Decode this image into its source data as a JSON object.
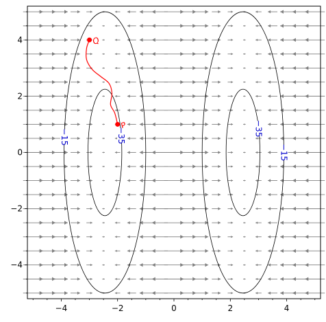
{
  "chart_data": {
    "type": "scatter",
    "title": "",
    "xlabel": "",
    "ylabel": "",
    "xlim": [
      -5.2,
      5.2
    ],
    "ylim": [
      -5.2,
      5.2
    ],
    "x_ticks": [
      -4,
      -2,
      0,
      2,
      4
    ],
    "y_ticks": [
      -4,
      -2,
      0,
      2,
      4
    ],
    "x_tick_labels": [
      "−4",
      "−2",
      "0",
      "2",
      "4"
    ],
    "y_tick_labels": [
      "−4",
      "−2",
      "0",
      "2",
      "4"
    ],
    "minor_tick_step": 0.5,
    "grid": false,
    "vector_field": {
      "description": "horizontal arrows pointing toward x = -2.5 and x = 2.5 region centers",
      "grid_x": [
        -5.0,
        -4.5,
        -4.0,
        -3.5,
        -3.0,
        -2.5,
        -2.0,
        -1.5,
        -1.0,
        -0.5,
        0.0,
        0.5,
        1.0,
        1.5,
        2.0,
        2.5,
        3.0,
        3.5,
        4.0,
        4.5,
        5.0
      ],
      "grid_y": [
        -5.0,
        -4.5,
        -4.0,
        -3.5,
        -3.0,
        -2.5,
        -2.0,
        -1.5,
        -1.0,
        -0.5,
        0.0,
        0.5,
        1.0,
        1.5,
        2.0,
        2.5,
        3.0,
        3.5,
        4.0,
        4.5,
        5.0
      ],
      "color": "#808080"
    },
    "contours": [
      {
        "level_label": "−15",
        "center": [
          -2.45,
          0.0
        ],
        "semi_x": 1.45,
        "semi_y": 5.0
      },
      {
        "level_label": "−35",
        "center": [
          -2.45,
          0.0
        ],
        "semi_x": 0.6,
        "semi_y": 2.25
      },
      {
        "level_label": "−15",
        "center": [
          2.45,
          0.0
        ],
        "semi_x": 1.45,
        "semi_y": 5.0
      },
      {
        "level_label": "−35",
        "center": [
          2.45,
          0.0
        ],
        "semi_x": 0.6,
        "semi_y": 2.25
      }
    ],
    "contour_color": "#000000",
    "contour_label_color": "#0000cc",
    "trajectory": {
      "color": "#ff0000",
      "points": [
        [
          -3.0,
          4.0
        ],
        [
          -3.1,
          3.7
        ],
        [
          -3.1,
          3.3
        ],
        [
          -2.9,
          2.95
        ],
        [
          -2.6,
          2.7
        ],
        [
          -2.3,
          2.45
        ],
        [
          -2.2,
          2.1
        ],
        [
          -2.25,
          1.7
        ],
        [
          -2.1,
          1.4
        ],
        [
          -2.0,
          1.0
        ]
      ],
      "start": {
        "x": -3.0,
        "y": 4.0,
        "label": "Q"
      },
      "end": {
        "x": -2.0,
        "y": 1.0,
        "label": "P"
      }
    }
  }
}
